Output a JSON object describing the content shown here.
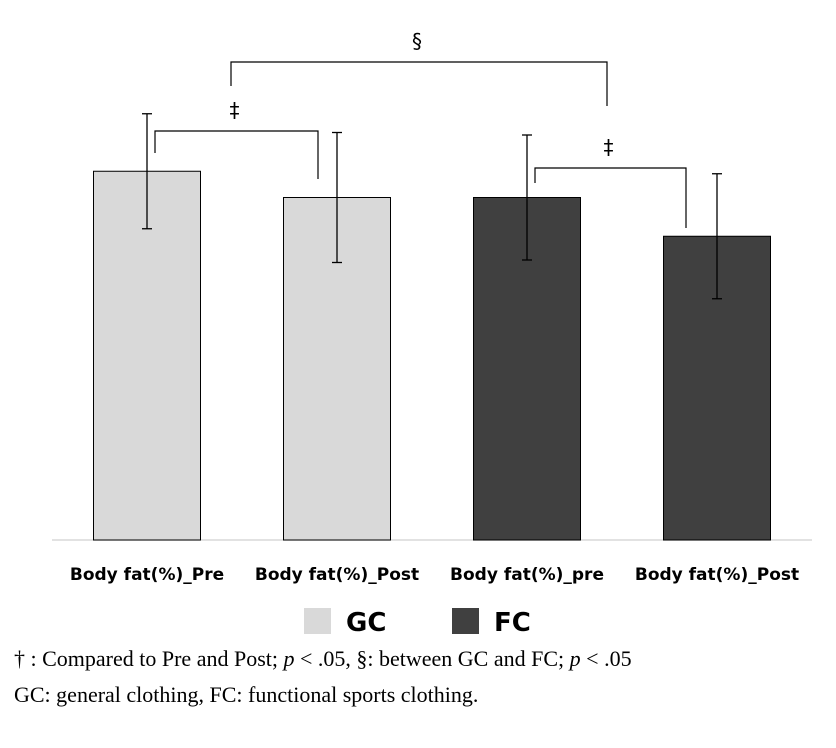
{
  "chart_data": {
    "type": "bar",
    "categories": [
      "Body fat(%)_Pre",
      "Body fat(%)_Post",
      "Body fat(%)_pre",
      "Body fat(%)_Post"
    ],
    "values": [
      29.5,
      27.4,
      27.4,
      24.3
    ],
    "error": [
      4.6,
      5.2,
      5.0,
      5.0
    ],
    "series": [
      {
        "name": "GC",
        "color": "#d9d9d9",
        "indices": [
          0,
          1
        ]
      },
      {
        "name": "FC",
        "color": "#404040",
        "indices": [
          2,
          3
        ]
      }
    ],
    "ylim": [
      0,
      40
    ],
    "title": "",
    "xlabel": "",
    "ylabel": "",
    "grid": false,
    "legend": "bottom-center",
    "annotations": [
      {
        "symbol": "‡",
        "from": 0,
        "to": 1
      },
      {
        "symbol": "‡",
        "from": 2,
        "to": 3
      },
      {
        "symbol": "§",
        "from": 0,
        "to": 2
      }
    ]
  },
  "footnotes": {
    "line1": {
      "dagger": "†",
      "part1": " : Compared to Pre and Post; ",
      "p1": "p",
      "part2": " < .05, §: between GC and FC; ",
      "p2": "p",
      "part3": " < .05"
    },
    "line2": "GC: general clothing, FC: functional sports clothing."
  }
}
